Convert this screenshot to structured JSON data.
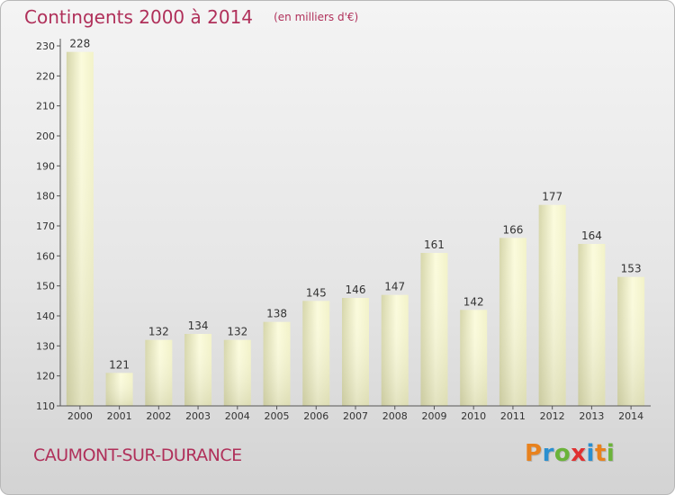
{
  "chart_data": {
    "type": "bar",
    "title": "Contingents 2000 à 2014",
    "subtitle": "(en milliers d'€)",
    "xlabel": "",
    "ylabel": "",
    "categories": [
      "2000",
      "2001",
      "2002",
      "2003",
      "2004",
      "2005",
      "2006",
      "2007",
      "2008",
      "2009",
      "2010",
      "2011",
      "2012",
      "2013",
      "2014"
    ],
    "values": [
      228,
      121,
      132,
      134,
      132,
      138,
      145,
      146,
      147,
      161,
      142,
      166,
      177,
      164,
      153
    ],
    "ylim": [
      110,
      230
    ],
    "yticks": [
      110,
      120,
      130,
      140,
      150,
      160,
      170,
      180,
      190,
      200,
      210,
      220,
      230
    ],
    "grid": false,
    "legend": "none"
  },
  "footer": {
    "commune": "CAUMONT-SUR-DURANCE",
    "brand": "Proxiti"
  },
  "colors": {
    "title": "#b0305a",
    "bar_light": "#fbfbdc",
    "bar_dark": "#d6d6aa",
    "axis": "#555555",
    "brand_letters": [
      "#e8821e",
      "#2a8fd0",
      "#6bb33a",
      "#e03030",
      "#2a8fd0",
      "#e8821e",
      "#6bb33a"
    ]
  }
}
